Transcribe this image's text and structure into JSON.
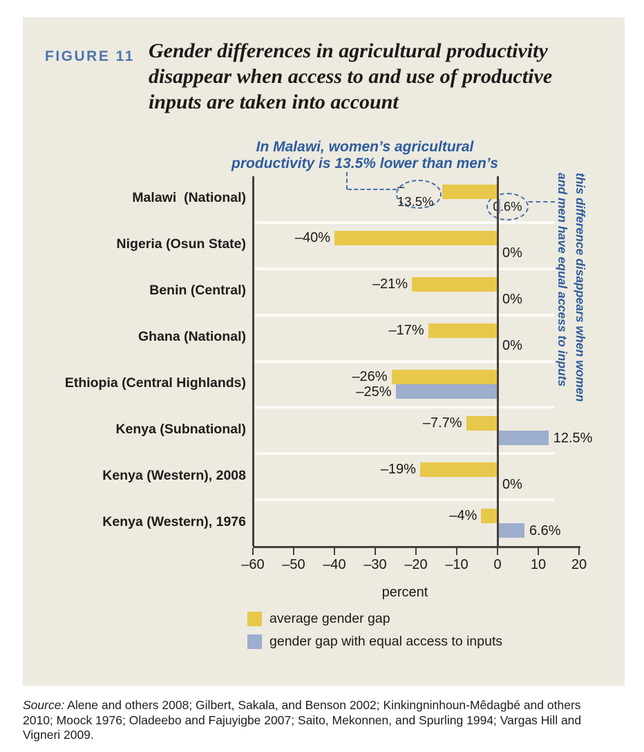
{
  "figure": {
    "label": "FIGURE 11",
    "title": "Gender differences in agricultural productivity\ndisappear when access to and use of productive\ninputs are taken into account"
  },
  "annotations": {
    "malawi_note": "In Malawi, women’s agricultural\nproductivity is 13.5% lower than men’s",
    "equal_access_note": "this difference disappears when women\nand men have equal access to inputs"
  },
  "chart_data": {
    "type": "bar",
    "orientation": "horizontal",
    "categories": [
      "Malawi  (National)",
      "Nigeria (Osun State)",
      "Benin (Central)",
      "Ghana (National)",
      "Ethiopia (Central Highlands)",
      "Kenya (Subnational)",
      "Kenya (Western), 2008",
      "Kenya (Western), 1976"
    ],
    "series": [
      {
        "name": "average gender gap",
        "color": "#E8C84B",
        "values": [
          -13.5,
          -40,
          -21,
          -17,
          -26,
          -7.7,
          -19,
          -4
        ],
        "labels": [
          "–13.5%",
          "–40%",
          "–21%",
          "–17%",
          "–26%",
          "–7.7%",
          "–19%",
          "–4%"
        ]
      },
      {
        "name": "gender gap with equal access to inputs",
        "color": "#9DAECF",
        "values": [
          0.6,
          0,
          0,
          0,
          -25,
          12.5,
          0,
          6.6
        ],
        "labels": [
          "0.6%",
          "0%",
          "0%",
          "0%",
          "–25%",
          "12.5%",
          "0%",
          "6.6%"
        ]
      }
    ],
    "xlabel": "percent",
    "xlim": [
      -60,
      20
    ],
    "x_ticks": [
      -60,
      -50,
      -40,
      -30,
      -20,
      -10,
      0,
      10,
      20
    ],
    "x_tick_labels": [
      "–60",
      "–50",
      "–40",
      "–30",
      "–20",
      "–10",
      "0",
      "10",
      "20"
    ],
    "grid": "row-separators",
    "legend_position": "bottom-left"
  },
  "source": {
    "label": "Source:",
    "text": "Alene and others 2008; Gilbert, Sakala, and Benson 2002; Kinkingninhoun-Mêdagbé and others\n2010; Moock 1976; Oladeebo and Fajuyigbe 2007; Saito, Mekonnen, and Spurling 1994; Vargas Hill and\nVigneri 2009."
  },
  "colors": {
    "card_background": "#EDEAE0",
    "figure_label_blue": "#4C74AE",
    "annotation_blue": "#2D5C9D",
    "dash_blue": "#4470AE",
    "bar_yellow": "#E8C84B",
    "bar_blue": "#9DAECF",
    "axis_dark": "#46413A",
    "text_dark": "#1B1A18"
  }
}
